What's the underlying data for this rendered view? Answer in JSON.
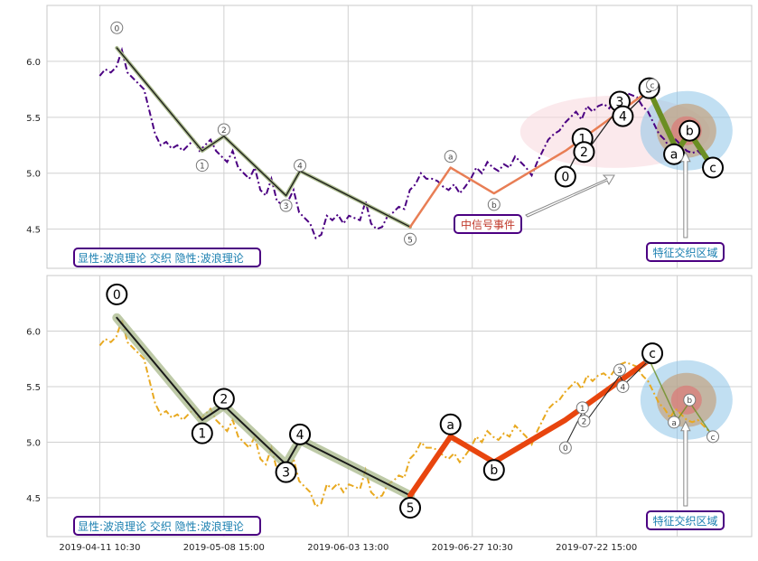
{
  "colors": {
    "grid": "#d0d0d0",
    "frame": "#c8c8c8",
    "price_top": "#4b0082",
    "price_bottom": "#e8a920",
    "main_wave": "#1a1a1a",
    "main_wave_halo": "#a8b88a",
    "sub_wave_rise": "#e87e55",
    "sub_wave_rise_bold": "#e8450e",
    "down_wave": "#6b8e23",
    "ellipse_pink": "#f8d7dc",
    "ellipse_blue": "#8ec4e8",
    "ellipse_brown": "#c49a6c",
    "ellipse_red": "#e07070",
    "label_border": "#4b0082",
    "label_text": "#1a7fb0",
    "signal_text": "#c0392b"
  },
  "chart_data": [
    {
      "type": "line",
      "panel": "top",
      "ylim": [
        4.15,
        6.5
      ],
      "yticks": [
        "4.5",
        "5.0",
        "5.5",
        "6.0"
      ],
      "grid": true,
      "series": [
        {
          "role": "price",
          "values": [
            5.87,
            5.93,
            5.9,
            5.95,
            6.1,
            5.9,
            5.85,
            5.8,
            5.75,
            5.55,
            5.35,
            5.25,
            5.28,
            5.22,
            5.25,
            5.2,
            5.25,
            5.3,
            5.2,
            5.25,
            5.3,
            5.2,
            5.15,
            5.1,
            5.2,
            5.05,
            5.0,
            4.95,
            5.05,
            4.85,
            4.8,
            4.95,
            4.75,
            4.72,
            4.75,
            4.85,
            4.65,
            4.6,
            4.55,
            4.42,
            4.45,
            4.62,
            4.58,
            4.63,
            4.55,
            4.62,
            4.6,
            4.58,
            4.75,
            4.55,
            4.5,
            4.52,
            4.62,
            4.65,
            4.7,
            4.68,
            4.85,
            4.9,
            5.0,
            4.95,
            4.95,
            4.93,
            4.88,
            4.85,
            4.9,
            4.82,
            4.88,
            4.95,
            5.05,
            5.0,
            5.1,
            5.05,
            5.02,
            5.08,
            5.05,
            5.15,
            5.1,
            5.05,
            4.98,
            5.1,
            5.2,
            5.3,
            5.35,
            5.38,
            5.45,
            5.5,
            5.55,
            5.48,
            5.6,
            5.55,
            5.6,
            5.62,
            5.58,
            5.65,
            5.7,
            5.72,
            5.7,
            5.68,
            5.6,
            5.55,
            5.45,
            5.35,
            5.3,
            5.22,
            5.3,
            5.25,
            5.2,
            5.18,
            5.2,
            5.15,
            5.1,
            5.05
          ]
        },
        {
          "role": "main-wave",
          "points": [
            [
              0.55,
              6.12
            ],
            [
              3.3,
              5.2
            ],
            [
              4.0,
              5.33
            ],
            [
              6.0,
              4.8
            ],
            [
              6.45,
              5.02
            ],
            [
              10.0,
              4.52
            ]
          ]
        },
        {
          "role": "sub-wave",
          "points": [
            [
              10.0,
              4.52
            ],
            [
              11.3,
              5.05
            ],
            [
              12.7,
              4.82
            ],
            [
              15.0,
              5.2
            ],
            [
              17.7,
              5.74
            ]
          ]
        },
        {
          "role": "detail-wave",
          "points": [
            [
              15.0,
              4.97
            ],
            [
              15.6,
              5.3
            ],
            [
              15.65,
              5.18
            ],
            [
              16.75,
              5.6
            ],
            [
              16.9,
              5.52
            ],
            [
              17.7,
              5.74
            ]
          ]
        },
        {
          "role": "down-wave",
          "points": [
            [
              17.7,
              5.74
            ],
            [
              18.6,
              5.2
            ],
            [
              19.0,
              5.36
            ],
            [
              19.75,
              5.05
            ]
          ]
        }
      ],
      "wave_labels": [
        {
          "text": "0",
          "x": 0.55,
          "y": 6.3,
          "size": "small"
        },
        {
          "text": "1",
          "x": 3.3,
          "y": 5.07,
          "size": "small"
        },
        {
          "text": "2",
          "x": 4.0,
          "y": 5.39,
          "size": "small"
        },
        {
          "text": "3",
          "x": 6.0,
          "y": 4.71,
          "size": "small"
        },
        {
          "text": "4",
          "x": 6.45,
          "y": 5.07,
          "size": "small"
        },
        {
          "text": "5",
          "x": 10.0,
          "y": 4.41,
          "size": "small"
        },
        {
          "text": "a",
          "x": 11.3,
          "y": 5.15,
          "size": "small"
        },
        {
          "text": "b",
          "x": 12.7,
          "y": 4.72,
          "size": "small"
        },
        {
          "text": "0",
          "x": 15.0,
          "y": 4.97,
          "size": "large"
        },
        {
          "text": "1",
          "x": 15.55,
          "y": 5.31,
          "size": "large"
        },
        {
          "text": "2",
          "x": 15.6,
          "y": 5.19,
          "size": "large"
        },
        {
          "text": "3",
          "x": 16.75,
          "y": 5.64,
          "size": "large"
        },
        {
          "text": "4",
          "x": 16.85,
          "y": 5.51,
          "size": "large"
        },
        {
          "text": "5",
          "x": 17.7,
          "y": 5.76,
          "size": "large"
        },
        {
          "text": "c",
          "x": 17.8,
          "y": 5.79,
          "size": "small"
        },
        {
          "text": "a",
          "x": 18.5,
          "y": 5.17,
          "size": "large"
        },
        {
          "text": "b",
          "x": 19.0,
          "y": 5.38,
          "size": "large"
        },
        {
          "text": "c",
          "x": 19.75,
          "y": 5.05,
          "size": "large"
        }
      ],
      "regions": [
        {
          "kind": "signal",
          "cx": 16.6,
          "cy": 5.37
        },
        {
          "kind": "feature",
          "cx": 18.9,
          "cy": 5.38
        }
      ],
      "annotations": {
        "pattern_label": "显性:波浪理论 交织 隐性:波浪理论",
        "signal_label": "中信号事件",
        "feature_label": "特征交织区域"
      }
    },
    {
      "type": "line",
      "panel": "bottom",
      "ylim": [
        4.15,
        6.5
      ],
      "yticks": [
        "4.5",
        "5.0",
        "5.5",
        "6.0"
      ],
      "grid": true,
      "x_ticks": [
        "2019-04-11 10:30",
        "2019-05-08 15:00",
        "2019-06-03 13:00",
        "2019-06-27 10:30",
        "2019-07-22 15:00"
      ],
      "series": [
        {
          "role": "price",
          "values": [
            5.87,
            5.93,
            5.9,
            5.95,
            6.1,
            5.9,
            5.85,
            5.8,
            5.75,
            5.55,
            5.35,
            5.25,
            5.28,
            5.22,
            5.25,
            5.2,
            5.25,
            5.3,
            5.2,
            5.25,
            5.3,
            5.2,
            5.15,
            5.1,
            5.2,
            5.05,
            5.0,
            4.95,
            5.05,
            4.85,
            4.8,
            4.95,
            4.75,
            4.72,
            4.75,
            4.85,
            4.65,
            4.6,
            4.55,
            4.42,
            4.45,
            4.62,
            4.58,
            4.63,
            4.55,
            4.62,
            4.6,
            4.58,
            4.75,
            4.55,
            4.5,
            4.52,
            4.62,
            4.65,
            4.7,
            4.68,
            4.85,
            4.9,
            5.0,
            4.95,
            4.95,
            4.93,
            4.88,
            4.85,
            4.9,
            4.82,
            4.88,
            4.95,
            5.05,
            5.0,
            5.1,
            5.05,
            5.02,
            5.08,
            5.05,
            5.15,
            5.1,
            5.05,
            4.98,
            5.1,
            5.2,
            5.3,
            5.35,
            5.38,
            5.45,
            5.5,
            5.55,
            5.48,
            5.6,
            5.55,
            5.6,
            5.62,
            5.58,
            5.65,
            5.7,
            5.72,
            5.7,
            5.68,
            5.6,
            5.55,
            5.45,
            5.35,
            5.3,
            5.22,
            5.3,
            5.25,
            5.2,
            5.18,
            5.2,
            5.15,
            5.1,
            5.05
          ]
        },
        {
          "role": "main-wave",
          "points": [
            [
              0.55,
              6.12
            ],
            [
              3.3,
              5.2
            ],
            [
              4.0,
              5.33
            ],
            [
              6.0,
              4.8
            ],
            [
              6.45,
              5.02
            ],
            [
              10.0,
              4.52
            ]
          ]
        },
        {
          "role": "sub-wave",
          "points": [
            [
              10.0,
              4.52
            ],
            [
              11.3,
              5.05
            ],
            [
              12.7,
              4.82
            ],
            [
              15.0,
              5.2
            ],
            [
              17.7,
              5.74
            ]
          ]
        },
        {
          "role": "detail-wave",
          "points": [
            [
              15.0,
              4.97
            ],
            [
              15.6,
              5.3
            ],
            [
              15.65,
              5.18
            ],
            [
              16.75,
              5.6
            ],
            [
              16.9,
              5.52
            ],
            [
              17.7,
              5.74
            ]
          ]
        },
        {
          "role": "down-wave",
          "points": [
            [
              17.7,
              5.74
            ],
            [
              18.6,
              5.2
            ],
            [
              19.0,
              5.36
            ],
            [
              19.75,
              5.05
            ]
          ]
        }
      ],
      "wave_labels": [
        {
          "text": "0",
          "x": 0.55,
          "y": 6.33,
          "size": "large"
        },
        {
          "text": "1",
          "x": 3.3,
          "y": 5.08,
          "size": "large"
        },
        {
          "text": "2",
          "x": 4.0,
          "y": 5.39,
          "size": "large"
        },
        {
          "text": "3",
          "x": 6.0,
          "y": 4.73,
          "size": "large"
        },
        {
          "text": "4",
          "x": 6.45,
          "y": 5.07,
          "size": "large"
        },
        {
          "text": "5",
          "x": 10.0,
          "y": 4.41,
          "size": "large"
        },
        {
          "text": "a",
          "x": 11.3,
          "y": 5.16,
          "size": "large"
        },
        {
          "text": "b",
          "x": 12.7,
          "y": 4.75,
          "size": "large"
        },
        {
          "text": "0",
          "x": 15.0,
          "y": 4.95,
          "size": "small"
        },
        {
          "text": "1",
          "x": 15.55,
          "y": 5.31,
          "size": "small"
        },
        {
          "text": "2",
          "x": 15.6,
          "y": 5.19,
          "size": "small"
        },
        {
          "text": "3",
          "x": 16.75,
          "y": 5.65,
          "size": "small"
        },
        {
          "text": "4",
          "x": 16.85,
          "y": 5.5,
          "size": "small"
        },
        {
          "text": "5",
          "x": 17.7,
          "y": 5.76,
          "size": "small"
        },
        {
          "text": "c",
          "x": 17.8,
          "y": 5.8,
          "size": "large"
        },
        {
          "text": "a",
          "x": 18.5,
          "y": 5.18,
          "size": "small"
        },
        {
          "text": "b",
          "x": 19.0,
          "y": 5.38,
          "size": "small"
        },
        {
          "text": "c",
          "x": 19.75,
          "y": 5.05,
          "size": "small"
        }
      ],
      "regions": [
        {
          "kind": "feature",
          "cx": 18.9,
          "cy": 5.38
        }
      ],
      "annotations": {
        "pattern_label": "显性:波浪理论 交织 隐性:波浪理论",
        "feature_label": "特征交织区域"
      }
    }
  ]
}
